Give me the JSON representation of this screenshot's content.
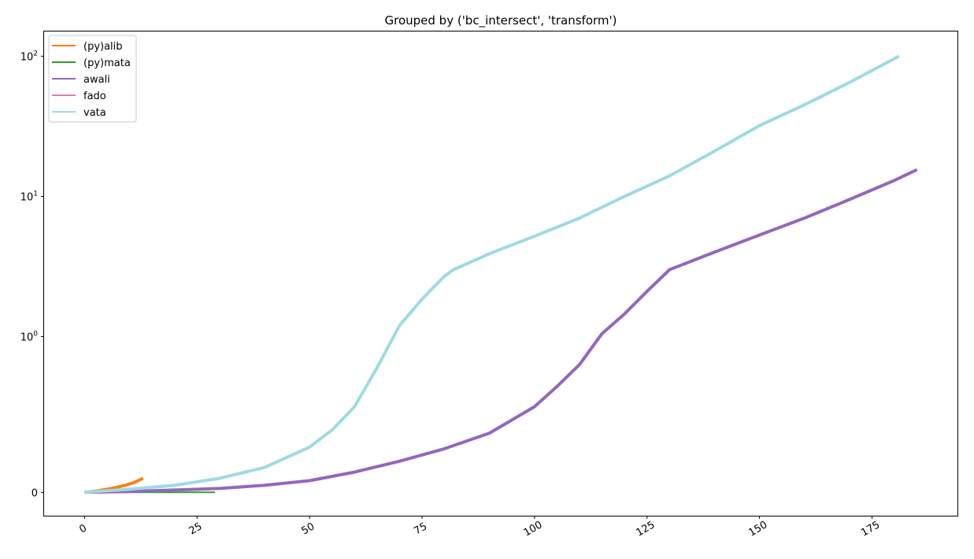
{
  "chart_data": {
    "type": "line",
    "title": "Grouped by ('bc_intersect', 'transform')",
    "xlabel": "",
    "ylabel": "",
    "x_scale": "linear",
    "y_scale": "symlog",
    "xlim": [
      -9,
      194
    ],
    "ylim": [
      -0.15,
      150
    ],
    "x_ticks": [
      0,
      25,
      50,
      75,
      100,
      125,
      150,
      175
    ],
    "y_ticks": [
      {
        "value": 0,
        "label": "0"
      },
      {
        "value": 1,
        "label": "10",
        "exp": "0"
      },
      {
        "value": 10,
        "label": "10",
        "exp": "1"
      },
      {
        "value": 100,
        "label": "10",
        "exp": "2"
      }
    ],
    "grid": false,
    "legend_position": "top-left",
    "series": [
      {
        "name": "(py)alib",
        "color": "#ff7f0e",
        "x": [
          0,
          3,
          6,
          9,
          11,
          13
        ],
        "y": [
          0,
          0.01,
          0.025,
          0.045,
          0.063,
          0.09
        ]
      },
      {
        "name": "(py)mata",
        "color": "#2ca02c",
        "x": [
          0,
          10,
          20,
          29
        ],
        "y": [
          0,
          0,
          0,
          0
        ]
      },
      {
        "name": "awali",
        "color": "#9467bd",
        "x": [
          0,
          10,
          20,
          30,
          40,
          50,
          60,
          70,
          80,
          90,
          100,
          105,
          110,
          115,
          120,
          125,
          130,
          140,
          150,
          160,
          170,
          180,
          185
        ],
        "y": [
          0,
          0.005,
          0.015,
          0.025,
          0.045,
          0.075,
          0.13,
          0.2,
          0.28,
          0.38,
          0.55,
          0.68,
          0.82,
          1.05,
          1.45,
          2.1,
          3.0,
          4.0,
          5.3,
          7.0,
          9.5,
          13.0,
          15.5
        ]
      },
      {
        "name": "fado",
        "color": "#e377c2",
        "x": [],
        "y": []
      },
      {
        "name": "vata",
        "color": "#9edae5",
        "x": [
          0,
          10,
          20,
          30,
          40,
          50,
          55,
          60,
          65,
          70,
          75,
          80,
          82,
          90,
          100,
          110,
          120,
          130,
          140,
          150,
          160,
          170,
          181
        ],
        "y": [
          0,
          0.02,
          0.045,
          0.09,
          0.16,
          0.29,
          0.4,
          0.55,
          0.8,
          1.2,
          1.85,
          2.7,
          3.0,
          3.9,
          5.2,
          7.0,
          10.0,
          14.0,
          21.0,
          32.0,
          45.0,
          65.0,
          100.0
        ]
      }
    ]
  }
}
